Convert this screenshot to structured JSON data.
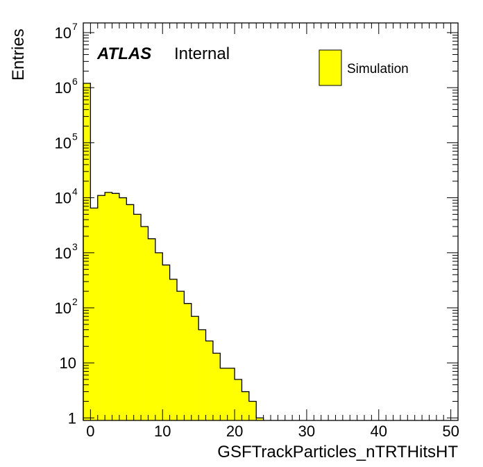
{
  "chart_data": {
    "type": "bar",
    "subtype": "histogram",
    "xlabel": "GSFTrackParticles_nTRTHitsHT",
    "ylabel": "Entries",
    "label_bold": "ATLAS",
    "label_normal": "Internal",
    "legend": [
      {
        "name": "Simulation",
        "color": "#ffff00",
        "edge": "#000000"
      }
    ],
    "legend_position": "top-right",
    "xlim": [
      -1,
      51
    ],
    "ylim": [
      0.9,
      15000000
    ],
    "yscale": "log",
    "bin_width": 1,
    "bin_start": -1,
    "values": [
      1200000,
      6500,
      11000,
      12500,
      12000,
      10000,
      7500,
      5000,
      3000,
      1800,
      1000,
      600,
      330,
      200,
      120,
      70,
      40,
      25,
      15,
      8,
      8,
      5,
      3,
      2,
      1
    ],
    "xticks": [
      0,
      10,
      20,
      30,
      40,
      50
    ],
    "xtick_labels": [
      "0",
      "10",
      "20",
      "30",
      "40",
      "50"
    ],
    "yticks": [
      1,
      10,
      100,
      1000,
      10000,
      100000,
      1000000,
      10000000
    ],
    "ytick_labels": [
      {
        "base": "1",
        "exp": ""
      },
      {
        "base": "10",
        "exp": ""
      },
      {
        "base": "10",
        "exp": "2"
      },
      {
        "base": "10",
        "exp": "3"
      },
      {
        "base": "10",
        "exp": "4"
      },
      {
        "base": "10",
        "exp": "5"
      },
      {
        "base": "10",
        "exp": "6"
      },
      {
        "base": "10",
        "exp": "7"
      }
    ],
    "fill_color": "#ffff00",
    "edge_color": "#000000"
  }
}
